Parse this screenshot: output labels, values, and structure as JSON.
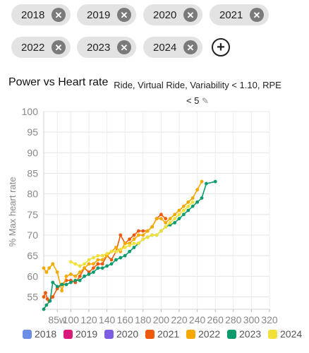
{
  "filters": {
    "years": [
      {
        "label": "2018"
      },
      {
        "label": "2019"
      },
      {
        "label": "2020"
      },
      {
        "label": "2021"
      },
      {
        "label": "2022"
      },
      {
        "label": "2023"
      },
      {
        "label": "2024"
      }
    ],
    "remove_glyph": "✕",
    "add_glyph": "+"
  },
  "chart_title": "Power vs Heart rate",
  "filter_text_line1": "Ride, Virtual Ride, Variability < 1.10, RPE",
  "filter_text_line2": "< 5",
  "edit_icon": "pencil-icon",
  "chart_data": {
    "type": "line",
    "title": "Power vs Heart rate",
    "xlabel": "",
    "ylabel": "% Max heart rate",
    "xlim": [
      70,
      320
    ],
    "ylim": [
      52,
      100
    ],
    "x_ticks": [
      "85w",
      "100",
      "120",
      "140",
      "160",
      "180",
      "200",
      "220",
      "240",
      "260",
      "280",
      "300",
      "320"
    ],
    "y_ticks": [
      "55",
      "60",
      "65",
      "70",
      "75",
      "80",
      "85",
      "90",
      "95",
      "100"
    ],
    "legend_position": "bottom",
    "series": [
      {
        "name": "2018",
        "color": "#6b8de8",
        "x": [],
        "y": []
      },
      {
        "name": "2019",
        "color": "#d81b7a",
        "x": [],
        "y": []
      },
      {
        "name": "2020",
        "color": "#7b5fe0",
        "x": [],
        "y": []
      },
      {
        "name": "2021",
        "color": "#ee5a0b",
        "x": [
          70,
          72,
          74,
          76,
          80,
          85,
          90,
          95,
          100,
          105,
          110,
          115,
          120,
          125,
          130,
          135,
          140,
          145,
          150,
          155,
          160,
          165,
          170,
          175,
          180,
          185,
          190,
          195,
          200,
          205
        ],
        "y": [
          55,
          56,
          54.5,
          54,
          55,
          57,
          58,
          59,
          59,
          58.5,
          60,
          62,
          61,
          62,
          63,
          63,
          65,
          64,
          66,
          70,
          68,
          69,
          70,
          71,
          71,
          71,
          72,
          74,
          75,
          74
        ]
      },
      {
        "name": "2022",
        "color": "#f5a800",
        "x": [
          70,
          73,
          76,
          80,
          85,
          90,
          95,
          100,
          105,
          110,
          115,
          120,
          125,
          130,
          135,
          140,
          145,
          150,
          155,
          160,
          165,
          170,
          175,
          180,
          185,
          190,
          195,
          200,
          205,
          210,
          215,
          220,
          225,
          230,
          235,
          240,
          245
        ],
        "y": [
          62,
          61,
          62,
          63,
          61,
          56.5,
          60,
          60.5,
          60,
          61,
          62,
          63,
          63,
          64,
          64,
          65,
          66,
          67,
          66,
          68,
          68,
          69,
          70,
          70,
          71,
          72,
          74,
          74,
          73,
          74,
          75,
          76,
          77,
          78,
          79,
          81,
          83
        ]
      },
      {
        "name": "2023",
        "color": "#0d9b6e",
        "x": [
          70,
          73,
          77,
          80,
          85,
          90,
          95,
          100,
          105,
          110,
          115,
          120,
          125,
          130,
          135,
          140,
          145,
          150,
          155,
          160,
          165,
          170,
          175,
          180,
          185,
          190,
          195,
          200,
          205,
          210,
          215,
          220,
          225,
          230,
          235,
          240,
          245,
          250,
          260
        ],
        "y": [
          52,
          53,
          54,
          58.5,
          57.5,
          58,
          58,
          58.5,
          59,
          59,
          60,
          60.5,
          61,
          62,
          62,
          62.5,
          63,
          64,
          64.5,
          65,
          66,
          67,
          68,
          69,
          69.5,
          70,
          70,
          71,
          72,
          72.5,
          73,
          74,
          75,
          76,
          77,
          78,
          79,
          82.5,
          83
        ]
      },
      {
        "name": "2024",
        "color": "#f0e03a",
        "x": [
          100,
          105,
          110,
          115,
          120,
          125,
          130,
          135,
          140,
          145,
          150,
          155,
          160,
          165,
          170,
          175,
          180,
          185,
          190,
          195,
          200,
          205,
          210,
          215,
          220,
          225,
          230,
          235
        ],
        "y": [
          63.5,
          63,
          62.5,
          63,
          64,
          64.5,
          65,
          65,
          65.5,
          66,
          66,
          66.5,
          67,
          67.5,
          68,
          68,
          69,
          69.5,
          70,
          70,
          71,
          72,
          73,
          74,
          75,
          76,
          77,
          78
        ]
      }
    ]
  }
}
